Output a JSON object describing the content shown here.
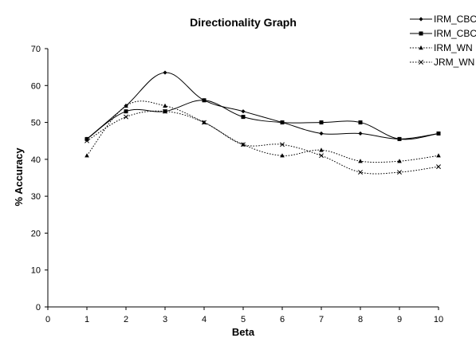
{
  "chart_data": {
    "type": "line",
    "title": "Directionality Graph",
    "xlabel": "Beta",
    "ylabel": "% Accuracy",
    "xlim": [
      0,
      10
    ],
    "ylim": [
      0,
      70
    ],
    "x_ticks": [
      0,
      1,
      2,
      3,
      4,
      5,
      6,
      7,
      8,
      9,
      10
    ],
    "y_ticks": [
      0,
      10,
      20,
      30,
      40,
      50,
      60,
      70
    ],
    "grid": false,
    "legend_position": "top-right",
    "x": [
      1,
      2,
      3,
      4,
      5,
      6,
      7,
      8,
      9,
      10
    ],
    "series": [
      {
        "name": "IRM_CBC",
        "values": [
          45.5,
          54.5,
          63.5,
          56.0,
          53.0,
          50.0,
          47.0,
          47.0,
          45.5,
          47.0
        ],
        "marker": "diamond",
        "line_style": "solid",
        "color": "#000000"
      },
      {
        "name": "IRM_CBC",
        "values": [
          45.5,
          53.0,
          53.0,
          56.0,
          51.5,
          50.0,
          50.0,
          50.0,
          45.5,
          47.0
        ],
        "marker": "square",
        "line_style": "solid",
        "color": "#000000"
      },
      {
        "name": "IRM_WN",
        "values": [
          41.0,
          54.5,
          54.5,
          50.0,
          44.0,
          41.0,
          42.5,
          39.5,
          39.5,
          41.0
        ],
        "marker": "triangle",
        "line_style": "dotted",
        "color": "#000000"
      },
      {
        "name": "JRM_WN",
        "values": [
          45.0,
          51.5,
          53.0,
          50.0,
          44.0,
          44.0,
          41.0,
          36.5,
          36.5,
          38.0
        ],
        "marker": "x",
        "line_style": "dotted",
        "color": "#000000"
      }
    ]
  }
}
